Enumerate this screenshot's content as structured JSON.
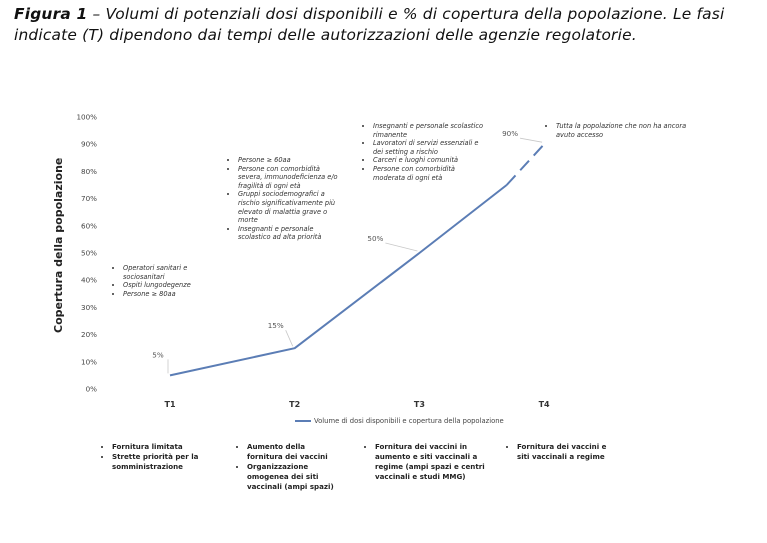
{
  "caption": {
    "figure_label": "Figura 1",
    "text": " – Volumi di potenziali dosi disponibili e % di copertura della popolazione. Le fasi indicate (T) dipendono dai tempi delle autorizzazioni delle agenzie regolatorie."
  },
  "colors": {
    "series": "#5b7db5",
    "leader": "#c8c8c8",
    "axis_text": "#444444"
  },
  "chart_data": {
    "type": "line",
    "x": [
      "T1",
      "T2",
      "T3",
      "T4"
    ],
    "ylabel": "Copertura della popolazione",
    "xlabel": "",
    "ylim": [
      0,
      100
    ],
    "yticks": [
      "0%",
      "10%",
      "20%",
      "30%",
      "40%",
      "50%",
      "60%",
      "70%",
      "80%",
      "90%",
      "100%"
    ],
    "grid": false,
    "legend_position": "bottom-center",
    "series": [
      {
        "name": "Volume di dosi disponibili e copertura della popolazione",
        "solid": [
          {
            "x": 0,
            "y": 5
          },
          {
            "x": 1,
            "y": 15
          },
          {
            "x": 2,
            "y": 50
          },
          {
            "x": 2.7,
            "y": 75
          }
        ],
        "dashed": [
          {
            "x": 2.7,
            "y": 75
          },
          {
            "x": 3,
            "y": 90
          }
        ]
      }
    ],
    "data_labels": [
      "5%",
      "15%",
      "50%",
      "90%"
    ]
  },
  "annotations": {
    "t1": [
      "Operatori sanitari e sociosanitari",
      "Ospiti lungodegenze",
      "Persone ≥ 80aa"
    ],
    "t2": [
      "Persone ≥ 60aa",
      "Persone con comorbidità severa, immunodeficienza e/o fragilità di ogni età",
      "Gruppi sociodemografici a rischio significativamente più elevato di malattia grave o morte",
      "Insegnanti e personale scolastico ad alta priorità"
    ],
    "t3": [
      "Insegnanti e personale scolastico rimanente",
      "Lavoratori di servizi essenziali e dei setting a rischio",
      "Carceri e luoghi comunità",
      "Persone con comorbidità moderata di ogni età"
    ],
    "t4": [
      "Tutta la popolazione che non ha ancora avuto accesso"
    ]
  },
  "phases": {
    "t1": [
      "Fornitura limitata",
      "Strette priorità per la somministrazione"
    ],
    "t2": [
      "Aumento della fornitura dei vaccini",
      "Organizzazione omogenea dei siti vaccinali (ampi spazi)"
    ],
    "t3": [
      "Fornitura dei vaccini in aumento e siti vaccinali a regime (ampi spazi e centri vaccinali e studi MMG)"
    ],
    "t4": [
      "Fornitura dei vaccini e siti vaccinali a regime"
    ]
  }
}
